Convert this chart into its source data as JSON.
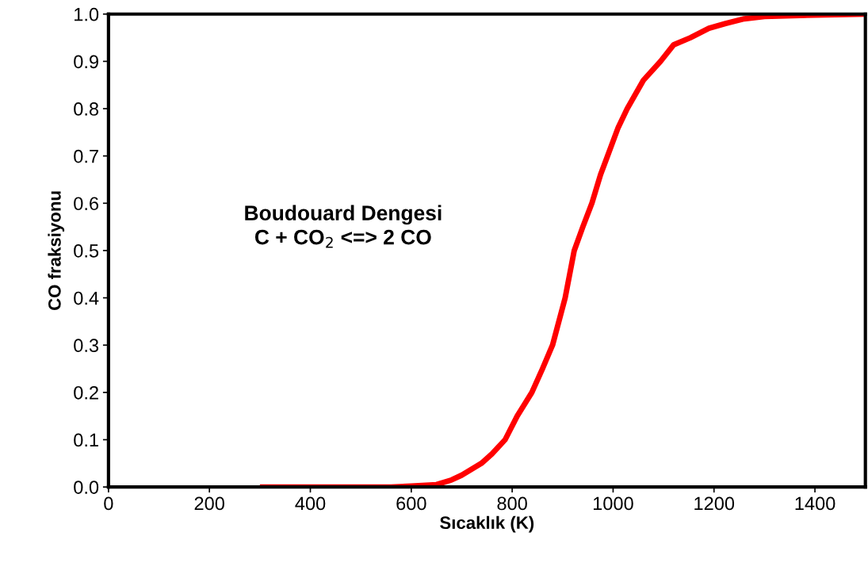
{
  "chart_data": {
    "type": "line",
    "xlabel": "Sıcaklık (K)",
    "ylabel": "CO fraksiyonu",
    "annotations": [
      "Boudouard Dengesi\nC + CO$_{2}$ <=> 2 CO"
    ],
    "series": [
      {
        "color": "#ff0000",
        "x": [
          300,
          400,
          500,
          560,
          600,
          650,
          680,
          700,
          739,
          760,
          786,
          810,
          839,
          860,
          880,
          905,
          923,
          940,
          958,
          975,
          989,
          1010,
          1028,
          1060,
          1094,
          1120,
          1153,
          1190,
          1223,
          1260,
          1300,
          1400,
          1500
        ],
        "values": [
          0,
          0,
          0,
          0,
          0.002,
          0.005,
          0.015,
          0.025,
          0.05,
          0.07,
          0.1,
          0.15,
          0.2,
          0.25,
          0.3,
          0.4,
          0.5,
          0.55,
          0.6,
          0.66,
          0.7,
          0.76,
          0.8,
          0.86,
          0.9,
          0.935,
          0.95,
          0.97,
          0.98,
          0.99,
          0.995,
          0.998,
          1.0
        ]
      }
    ],
    "xlim": [
      0,
      1500
    ],
    "xticks": [
      0,
      200,
      400,
      600,
      800,
      1000,
      1200,
      1400
    ],
    "ylim": [
      0,
      1.0
    ],
    "yticks": [
      {
        "value": 0,
        "label": "0.0"
      },
      {
        "value": 0.1,
        "label": "0.1"
      },
      {
        "value": 0.2,
        "label": "0.2"
      },
      {
        "value": 0.3,
        "label": "0.3"
      },
      {
        "value": 0.4,
        "label": "0.4"
      },
      {
        "value": 0.5,
        "label": "0.5"
      },
      {
        "value": 0.6,
        "label": "0.6"
      },
      {
        "value": 0.7,
        "label": "0.7"
      },
      {
        "value": 0.8,
        "label": "0.8"
      },
      {
        "value": 0.9,
        "label": "0.9"
      },
      {
        "value": 1.0,
        "label": "1.0"
      }
    ],
    "grid": false,
    "legend": false
  }
}
